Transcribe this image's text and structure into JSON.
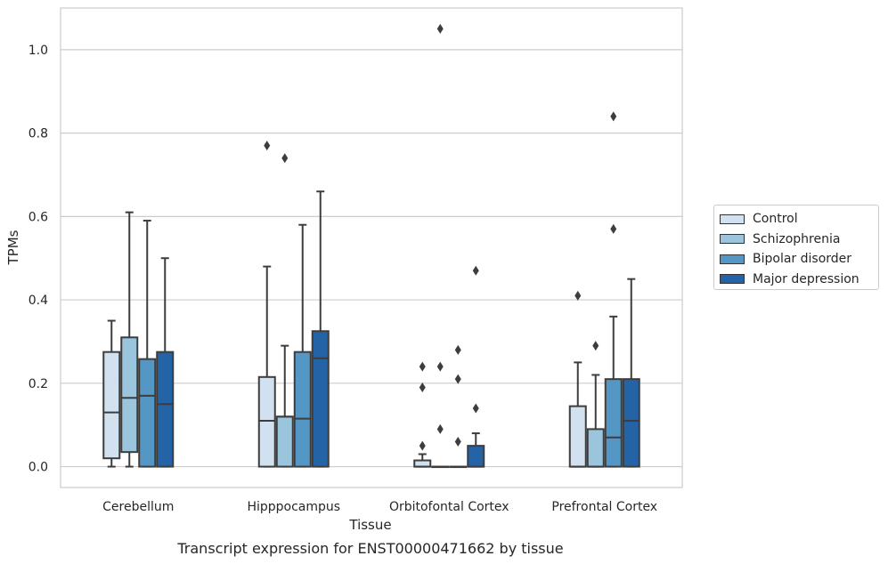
{
  "chart_data": {
    "type": "box",
    "title": "",
    "caption": "Transcript expression for ENST00000471662 by tissue",
    "xlabel": "Tissue",
    "ylabel": "TPMs",
    "ylim": [
      -0.05,
      1.1
    ],
    "yticks": [
      "0.0",
      "0.2",
      "0.4",
      "0.6",
      "0.8",
      "1.0"
    ],
    "grid": "horizontal",
    "legend_position": "right",
    "categories": [
      "Cerebellum",
      "Hipppocampus",
      "Orbitofontal Cortex",
      "Prefrontal Cortex"
    ],
    "series": [
      {
        "name": "Control",
        "color": "#d1e1f0",
        "boxes": [
          {
            "whislo": 0.0,
            "q1": 0.02,
            "med": 0.13,
            "q3": 0.275,
            "whishi": 0.35,
            "fliers": []
          },
          {
            "whislo": 0.0,
            "q1": 0.0,
            "med": 0.11,
            "q3": 0.215,
            "whishi": 0.48,
            "fliers": [
              0.77
            ]
          },
          {
            "whislo": 0.0,
            "q1": 0.0,
            "med": 0.0,
            "q3": 0.015,
            "whishi": 0.03,
            "fliers": [
              0.05,
              0.19,
              0.24
            ]
          },
          {
            "whislo": 0.0,
            "q1": 0.0,
            "med": 0.0,
            "q3": 0.145,
            "whishi": 0.25,
            "fliers": [
              0.41
            ]
          }
        ]
      },
      {
        "name": "Schizophrenia",
        "color": "#9ac5dc",
        "boxes": [
          {
            "whislo": 0.0,
            "q1": 0.035,
            "med": 0.165,
            "q3": 0.31,
            "whishi": 0.61,
            "fliers": []
          },
          {
            "whislo": 0.0,
            "q1": 0.0,
            "med": 0.12,
            "q3": 0.12,
            "whishi": 0.29,
            "fliers": [
              0.74
            ]
          },
          {
            "whislo": 0.0,
            "q1": 0.0,
            "med": 0.0,
            "q3": 0.0,
            "whishi": 0.0,
            "fliers": [
              0.09,
              0.24,
              1.05
            ]
          },
          {
            "whislo": 0.0,
            "q1": 0.0,
            "med": 0.0,
            "q3": 0.09,
            "whishi": 0.22,
            "fliers": [
              0.29
            ]
          }
        ]
      },
      {
        "name": "Bipolar disorder",
        "color": "#5496c4",
        "boxes": [
          {
            "whislo": 0.0,
            "q1": 0.0,
            "med": 0.17,
            "q3": 0.258,
            "whishi": 0.59,
            "fliers": []
          },
          {
            "whislo": 0.0,
            "q1": 0.0,
            "med": 0.115,
            "q3": 0.275,
            "whishi": 0.58,
            "fliers": []
          },
          {
            "whislo": 0.0,
            "q1": 0.0,
            "med": 0.0,
            "q3": 0.0,
            "whishi": 0.0,
            "fliers": [
              0.06,
              0.21,
              0.28
            ]
          },
          {
            "whislo": 0.0,
            "q1": 0.0,
            "med": 0.07,
            "q3": 0.21,
            "whishi": 0.36,
            "fliers": [
              0.57,
              0.84
            ]
          }
        ]
      },
      {
        "name": "Major depression",
        "color": "#2463a6",
        "boxes": [
          {
            "whislo": 0.0,
            "q1": 0.0,
            "med": 0.15,
            "q3": 0.275,
            "whishi": 0.5,
            "fliers": []
          },
          {
            "whislo": 0.0,
            "q1": 0.0,
            "med": 0.26,
            "q3": 0.325,
            "whishi": 0.66,
            "fliers": []
          },
          {
            "whislo": 0.0,
            "q1": 0.0,
            "med": 0.0,
            "q3": 0.05,
            "whishi": 0.08,
            "fliers": [
              0.14,
              0.47
            ]
          },
          {
            "whislo": 0.0,
            "q1": 0.0,
            "med": 0.11,
            "q3": 0.21,
            "whishi": 0.45,
            "fliers": []
          }
        ]
      }
    ]
  }
}
